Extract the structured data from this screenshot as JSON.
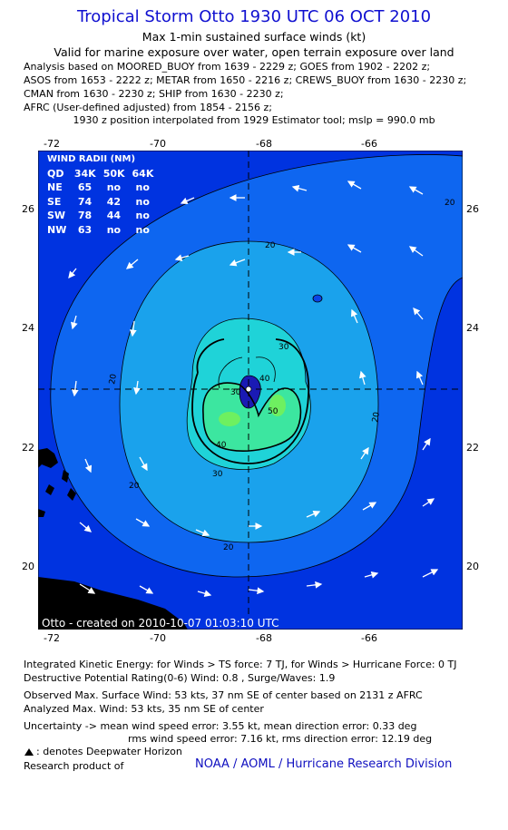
{
  "header": {
    "title": "Tropical Storm Otto 1930 UTC 06 OCT 2010",
    "subtitle1": "Max 1-min sustained surface winds (kt)",
    "subtitle2": "Valid for marine exposure over water, open terrain exposure over land",
    "analysis_lines": [
      "Analysis based on MOORED_BUOY from 1639 - 2229 z; GOES from 1902 - 2202 z;",
      "ASOS from 1653 - 2222 z; METAR from 1650 - 2216 z; CREWS_BUOY from 1630 - 2230 z;",
      "CMAN from 1630 - 2230 z; SHIP from 1630 - 2230 z;",
      "AFRC (User-defined adjusted) from 1854 - 2156 z;"
    ],
    "position_note": "1930 z position interpolated from 1929 Estimator tool; mslp = 990.0 mb"
  },
  "map": {
    "lon_ticks": [
      "-72",
      "-70",
      "-68",
      "-66"
    ],
    "lat_ticks": [
      "26",
      "24",
      "22",
      "20"
    ],
    "contour_labels": [
      "20",
      "20",
      "20",
      "20",
      "30",
      "30",
      "30",
      "40",
      "40",
      "50",
      "20",
      "20"
    ],
    "center": {
      "lon": -68.2,
      "lat": 23.0
    },
    "colors": {
      "level_0": "#0033e0",
      "level_20": "#0e66f0",
      "level_30": "#1aa2ec",
      "level_40": "#1fd3d8",
      "level_50": "#3ce6a0",
      "level_55": "#6ef060",
      "core": "#1a1ab4",
      "land": "#000000"
    },
    "wind_radii": {
      "title": "WIND RADII (NM)",
      "header": [
        "QD",
        "34K",
        "50K",
        "64K"
      ],
      "rows": [
        [
          "NE",
          "65",
          "no",
          "no"
        ],
        [
          "SE",
          "74",
          "42",
          "no"
        ],
        [
          "SW",
          "78",
          "44",
          "no"
        ],
        [
          "NW",
          "63",
          "no",
          "no"
        ]
      ]
    },
    "created": "Otto - created on 2010-10-07 01:03:10 UTC"
  },
  "footer": {
    "ike": "Integrated Kinetic Energy:  for Winds > TS force: 7 TJ,  for Winds > Hurricane Force: 0 TJ",
    "drp": "Destructive Potential Rating(0-6)   Wind: 0.8 , Surge/Waves: 1.9",
    "observed": "Observed Max. Surface Wind: 53 kts, 37 nm SE of center based on 2131 z AFRC",
    "analyzed": "Analyzed Max. Wind: 53 kts, 35 nm SE of center",
    "uncertainty1": "Uncertainty -> mean wind speed error: 3.55 kt,   mean direction error: 0.33 deg",
    "uncertainty2": "rms wind speed error: 7.16 kt,   rms direction error: 12.19 deg",
    "deepwater": ": denotes Deepwater Horizon",
    "research": "Research product of",
    "credit": "NOAA / AOML / Hurricane Research Division"
  }
}
